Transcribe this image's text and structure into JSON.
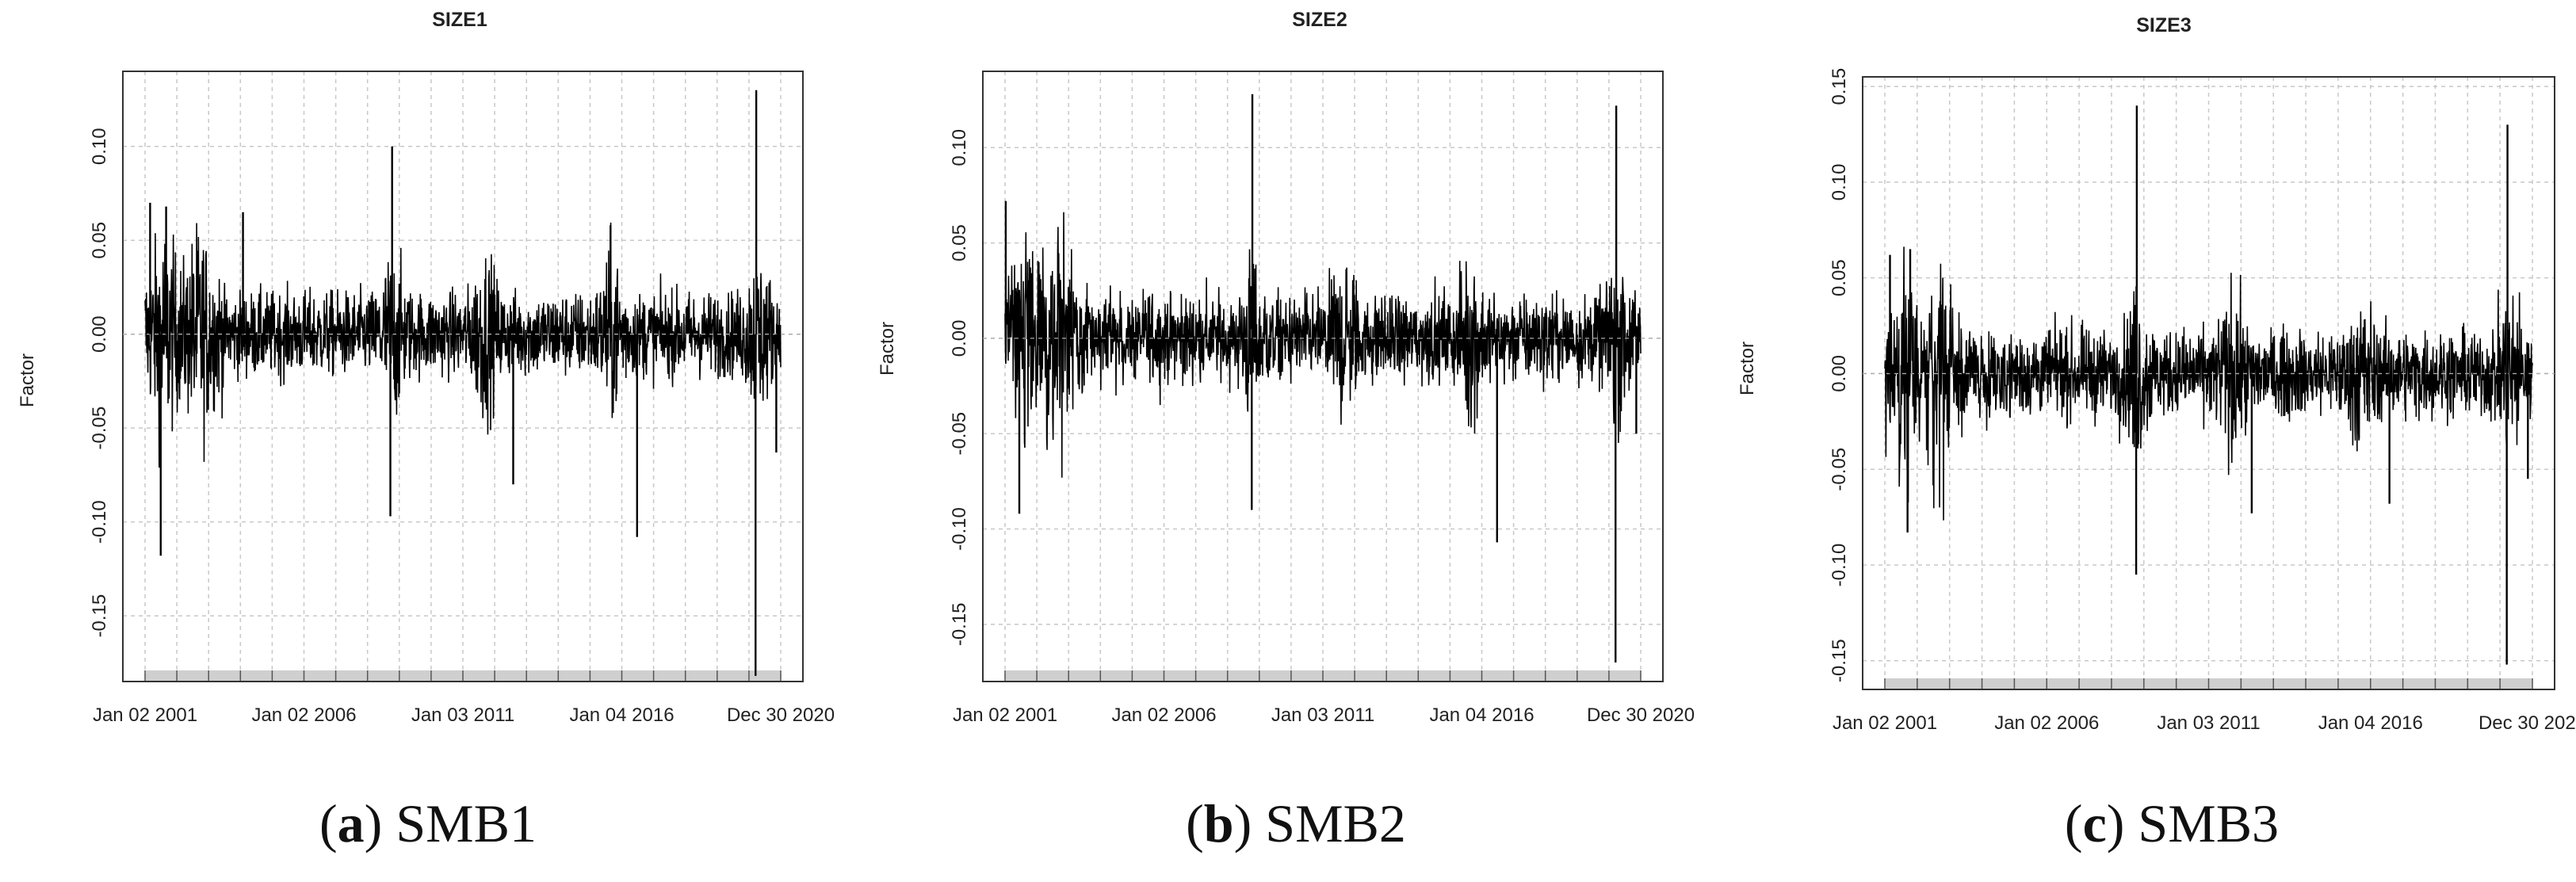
{
  "chart_data": [
    {
      "type": "line",
      "title": "SIZE1",
      "ylabel": "Factor",
      "xlabel": "",
      "x_tick_labels": [
        "Jan 02 2001",
        "Jan 02 2006",
        "Jan 03 2011",
        "Jan 04 2016",
        "Dec 30 2020"
      ],
      "x_range": [
        "2001-01-02",
        "2020-12-30"
      ],
      "y_ticks": [
        -0.15,
        -0.1,
        -0.05,
        0.0,
        0.05,
        0.1
      ],
      "y_tick_labels": [
        "-0.15",
        "-0.10",
        "-0.05",
        "0.00",
        "0.05",
        "0.10"
      ],
      "ylim": [
        -0.185,
        0.14
      ],
      "grid": true,
      "series": [
        {
          "values": "daily factor returns, 2001-01-02 to 2020-12-30 (dense; typical band approx. -0.03 to 0.03)",
          "notable_spikes": [
            {
              "date": "2001-07-01",
              "value": -0.118
            },
            {
              "date": "2001-03-01",
              "value": 0.07
            },
            {
              "date": "2001-09-01",
              "value": 0.068
            },
            {
              "date": "2004-02-01",
              "value": 0.065
            },
            {
              "date": "2008-10-10",
              "value": 0.1
            },
            {
              "date": "2008-09-20",
              "value": -0.097
            },
            {
              "date": "2012-08-01",
              "value": -0.08
            },
            {
              "date": "2015-08-24",
              "value": 0.058
            },
            {
              "date": "2016-06-24",
              "value": -0.108
            },
            {
              "date": "2020-03-16",
              "value": -0.182
            },
            {
              "date": "2020-03-24",
              "value": 0.13
            },
            {
              "date": "2020-11-09",
              "value": -0.063
            }
          ]
        }
      ]
    },
    {
      "type": "line",
      "title": "SIZE2",
      "ylabel": "Factor",
      "xlabel": "",
      "x_tick_labels": [
        "Jan 02 2001",
        "Jan 02 2006",
        "Jan 03 2011",
        "Jan 04 2016",
        "Dec 30 2020"
      ],
      "x_range": [
        "2001-01-02",
        "2020-12-30"
      ],
      "y_ticks": [
        -0.15,
        -0.1,
        -0.05,
        0.0,
        0.05,
        0.1
      ],
      "y_tick_labels": [
        "-0.15",
        "-0.10",
        "-0.05",
        "0.00",
        "0.05",
        "0.10"
      ],
      "ylim": [
        -0.18,
        0.14
      ],
      "grid": true,
      "series": [
        {
          "values": "daily factor returns, 2001-01-02 to 2020-12-30 (dense; typical band approx. -0.025 to 0.025)",
          "notable_spikes": [
            {
              "date": "2001-01-10",
              "value": 0.072
            },
            {
              "date": "2001-06-15",
              "value": -0.092
            },
            {
              "date": "2008-10-13",
              "value": 0.128
            },
            {
              "date": "2008-10-06",
              "value": -0.09
            },
            {
              "date": "2016-06-24",
              "value": -0.107
            },
            {
              "date": "2020-03-16",
              "value": -0.17
            },
            {
              "date": "2020-03-24",
              "value": 0.122
            },
            {
              "date": "2020-11-09",
              "value": -0.05
            }
          ]
        }
      ]
    },
    {
      "type": "line",
      "title": "SIZE3",
      "ylabel": "Factor",
      "xlabel": "",
      "x_tick_labels": [
        "Jan 02 2001",
        "Jan 02 2006",
        "Jan 03 2011",
        "Jan 04 2016",
        "Dec 30 2020"
      ],
      "x_range": [
        "2001-01-02",
        "2020-12-30"
      ],
      "y_ticks": [
        -0.15,
        -0.1,
        -0.05,
        0.0,
        0.05,
        0.1,
        0.15
      ],
      "y_tick_labels": [
        "-0.15",
        "-0.10",
        "-0.05",
        "0.00",
        "0.05",
        "0.10",
        "0.15"
      ],
      "ylim": [
        -0.165,
        0.155
      ],
      "grid": true,
      "series": [
        {
          "values": "daily factor returns, 2001-01-02 to 2020-12-30 (dense; typical band approx. -0.025 to 0.025)",
          "notable_spikes": [
            {
              "date": "2001-03-01",
              "value": 0.062
            },
            {
              "date": "2001-09-15",
              "value": -0.083
            },
            {
              "date": "2001-10-15",
              "value": 0.065
            },
            {
              "date": "2008-10-13",
              "value": 0.14
            },
            {
              "date": "2008-10-06",
              "value": -0.105
            },
            {
              "date": "2012-05-01",
              "value": -0.073
            },
            {
              "date": "2016-08-01",
              "value": -0.068
            },
            {
              "date": "2020-03-16",
              "value": -0.152
            },
            {
              "date": "2020-03-24",
              "value": 0.13
            },
            {
              "date": "2020-11-09",
              "value": -0.055
            }
          ]
        }
      ]
    }
  ],
  "captions": [
    {
      "letter": "a",
      "text": " SMB1"
    },
    {
      "letter": "b",
      "text": " SMB2"
    },
    {
      "letter": "c",
      "text": " SMB3"
    }
  ]
}
